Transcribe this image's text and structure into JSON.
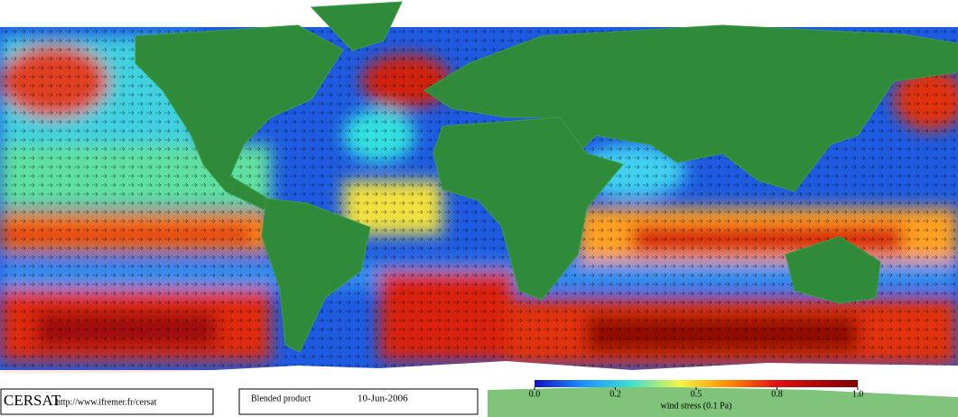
{
  "footer": {
    "logo": "CERSAT",
    "url": "http://www.ifremer.fr/cersat",
    "product": "Blended product",
    "date": "10-Jun-2006"
  },
  "colorbar": {
    "label": "wind stress (0.1 Pa)",
    "ticks": [
      {
        "value": 0,
        "label": "0.0"
      },
      {
        "value": 0.2,
        "label": "0.2"
      },
      {
        "value": 0.5,
        "label": "0.5"
      },
      {
        "value": 0.8,
        "label": "0.8"
      },
      {
        "value": 1,
        "label": "1.0"
      }
    ]
  }
}
